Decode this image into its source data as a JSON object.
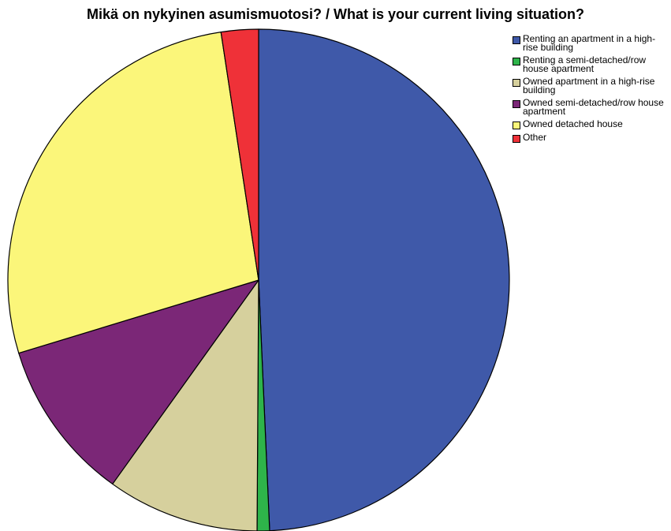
{
  "chart_data": {
    "type": "pie",
    "title": "Mikä on nykyinen asumismuotosi? / What is your current living situation?",
    "slices": [
      {
        "label": "Renting an apartment in a high-rise building",
        "value": 49.3,
        "color": "#3F59A9"
      },
      {
        "label": "Renting a semi-detached/row house apartment",
        "value": 0.8,
        "color": "#2EB44A"
      },
      {
        "label": "Owned apartment in a high-rise building",
        "value": 9.8,
        "color": "#D6D09D"
      },
      {
        "label": "Owned semi-detached/row house apartment",
        "value": 10.4,
        "color": "#7B2777"
      },
      {
        "label": "Owned detached house",
        "value": 27.3,
        "color": "#FBF67A"
      },
      {
        "label": "Other",
        "value": 2.4,
        "color": "#EF3138"
      }
    ],
    "legend_position": "top-right"
  }
}
